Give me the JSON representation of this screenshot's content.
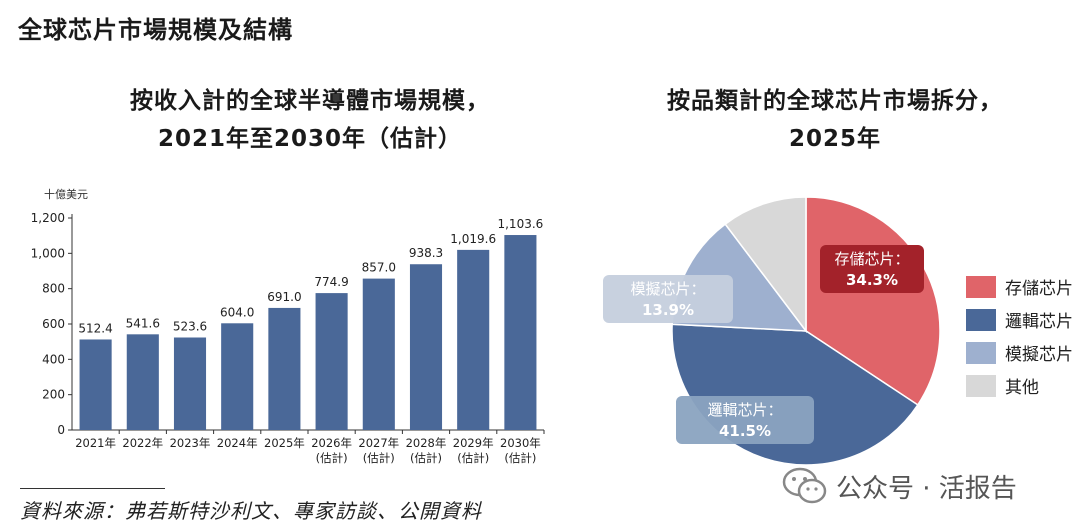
{
  "page_title": "全球芯片市場規模及結構",
  "bar_chart": {
    "title_line1": "按收入計的全球半導體市場規模，",
    "title_line2": "2021年至2030年（估計）",
    "unit": "十億美元"
  },
  "pie_chart": {
    "title_line1": "按品類計的全球芯片市場拆分，",
    "title_line2": "2025年"
  },
  "source": "資料來源：弗若斯特沙利文、專家訪談、公開資料",
  "watermark": "公众号 · 活报告",
  "colors": {
    "bar": "#4a6898",
    "storage": "#e06469",
    "logic": "#4a6898",
    "analog": "#9eb0cf",
    "other": "#d8d8d8"
  },
  "icons": {
    "watermark_icon": "wechat-icon"
  },
  "chart_data": [
    {
      "type": "bar",
      "categories": [
        "2021年",
        "2022年",
        "2023年",
        "2024年",
        "2025年",
        "2026年",
        "2027年",
        "2028年",
        "2029年",
        "2030年"
      ],
      "category_notes": [
        "",
        "",
        "",
        "",
        "",
        "(估計)",
        "(估計)",
        "(估計)",
        "(估計)",
        "(估計)"
      ],
      "values": [
        512.4,
        541.6,
        523.6,
        604.0,
        691.0,
        774.9,
        857.0,
        938.3,
        1019.6,
        1103.6
      ],
      "value_labels": [
        "512.4",
        "541.6",
        "523.6",
        "604.0",
        "691.0",
        "774.9",
        "857.0",
        "938.3",
        "1,019.6",
        "1,103.6"
      ],
      "ylim": [
        0,
        1200
      ],
      "yticks": [
        0,
        200,
        400,
        600,
        800,
        1000,
        1200
      ],
      "ytick_labels": [
        "0",
        "200",
        "400",
        "600",
        "800",
        "1,000",
        "1,200"
      ],
      "ylabel": "十億美元",
      "grid": false
    },
    {
      "type": "pie",
      "slices": [
        {
          "name": "存儲芯片",
          "label": "存儲芯片：",
          "value": 34.3,
          "value_label": "34.3%",
          "color": "#e06469",
          "box_color": "#a3222a",
          "box_opacity": 1
        },
        {
          "name": "邏輯芯片",
          "label": "邏輯芯片：",
          "value": 41.5,
          "value_label": "41.5%",
          "color": "#4a6898",
          "box_color": "#8aa3c0",
          "box_opacity": 0.95
        },
        {
          "name": "模擬芯片",
          "label": "模擬芯片：",
          "value": 13.9,
          "value_label": "13.9%",
          "color": "#9eb0cf",
          "box_color": "#c5cfdd",
          "box_opacity": 0.95
        },
        {
          "name": "其他",
          "value": 10.3,
          "color": "#d8d8d8"
        }
      ],
      "legend": [
        "存儲芯片",
        "邏輯芯片",
        "模擬芯片",
        "其他"
      ],
      "legend_position": "right"
    }
  ]
}
